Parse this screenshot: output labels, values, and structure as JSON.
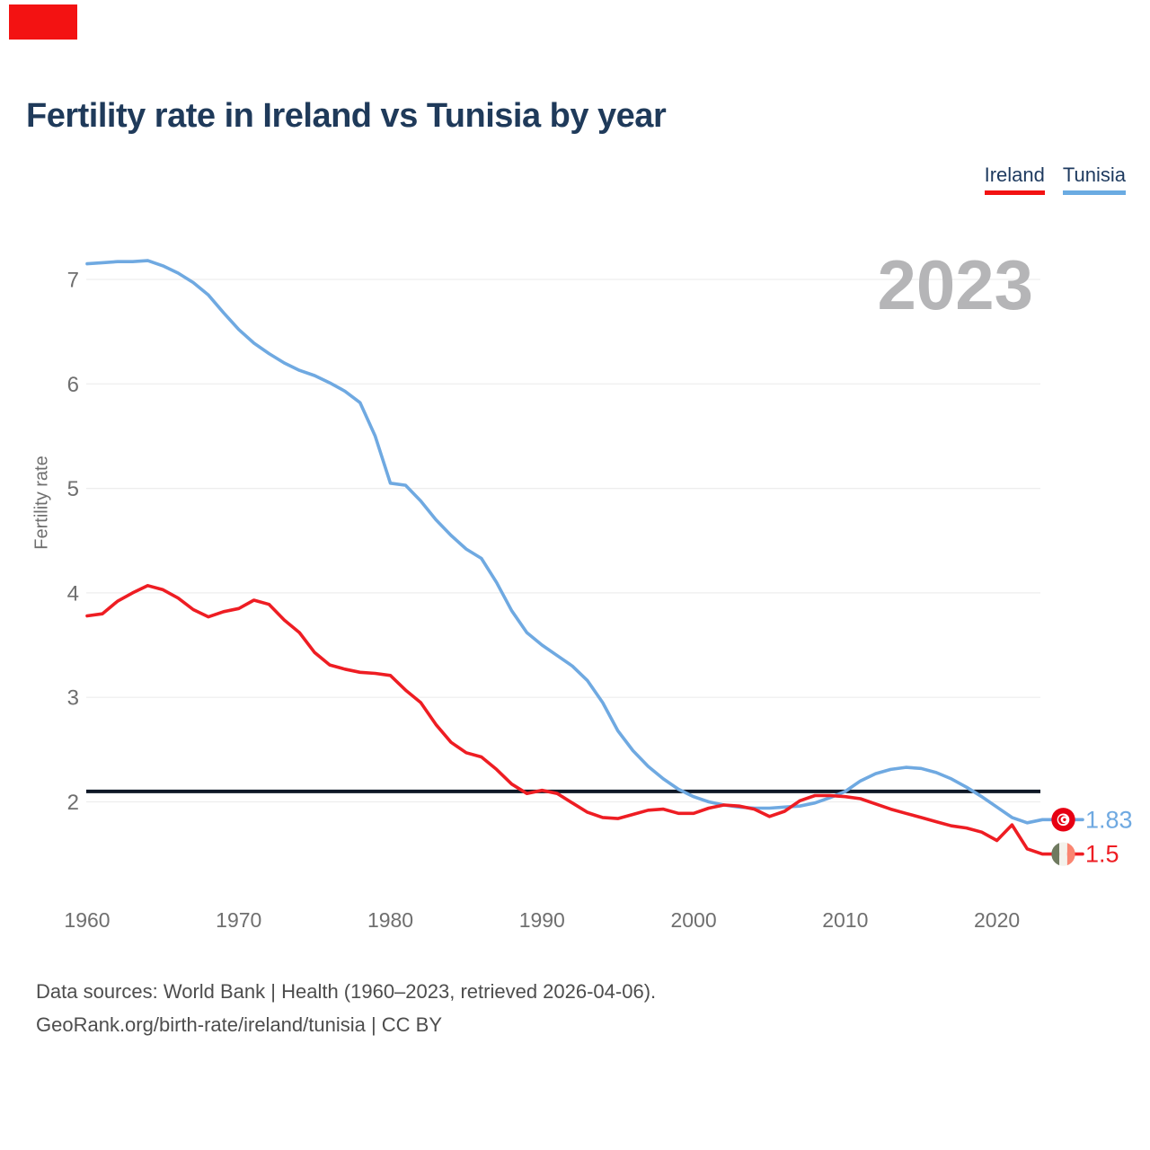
{
  "page": {
    "title": "Fertility rate in Ireland vs Tunisia by year",
    "watermark_year": "2023",
    "footer_line1": "Data sources: World Bank | Health (1960–2023, retrieved 2026-04-06).",
    "footer_line2": "GeoRank.org/birth-rate/ireland/tunisia | CC BY"
  },
  "legend": [
    {
      "label": "Ireland",
      "color": "#f31212"
    },
    {
      "label": "Tunisia",
      "color": "#6aabe2"
    }
  ],
  "chart_data": {
    "type": "line",
    "title": "Fertility rate in Ireland vs Tunisia by year",
    "xlabel": "",
    "ylabel": "Fertility rate",
    "xlim": [
      1960,
      2023
    ],
    "ylim": [
      1.2,
      7.4
    ],
    "x_ticks": [
      1960,
      1970,
      1980,
      1990,
      2000,
      2010,
      2020
    ],
    "y_ticks": [
      2,
      3,
      4,
      5,
      6,
      7
    ],
    "grid": "horizontal",
    "legend_position": "top-right",
    "replacement_line_value": 2.1,
    "watermark": "2023",
    "x": [
      1960,
      1961,
      1962,
      1963,
      1964,
      1965,
      1966,
      1967,
      1968,
      1969,
      1970,
      1971,
      1972,
      1973,
      1974,
      1975,
      1976,
      1977,
      1978,
      1979,
      1980,
      1981,
      1982,
      1983,
      1984,
      1985,
      1986,
      1987,
      1988,
      1989,
      1990,
      1991,
      1992,
      1993,
      1994,
      1995,
      1996,
      1997,
      1998,
      1999,
      2000,
      2001,
      2002,
      2003,
      2004,
      2005,
      2006,
      2007,
      2008,
      2009,
      2010,
      2011,
      2012,
      2013,
      2014,
      2015,
      2016,
      2017,
      2018,
      2019,
      2020,
      2021,
      2022,
      2023
    ],
    "series": [
      {
        "name": "Tunisia",
        "color": "#6fa9e1",
        "end_label": "1.83",
        "end_value": 1.83,
        "values": [
          7.15,
          7.16,
          7.17,
          7.17,
          7.18,
          7.13,
          7.06,
          6.97,
          6.85,
          6.68,
          6.52,
          6.39,
          6.29,
          6.2,
          6.13,
          6.08,
          6.01,
          5.93,
          5.82,
          5.5,
          5.05,
          5.03,
          4.88,
          4.7,
          4.55,
          4.42,
          4.33,
          4.1,
          3.83,
          3.62,
          3.5,
          3.4,
          3.3,
          3.16,
          2.95,
          2.68,
          2.49,
          2.34,
          2.22,
          2.12,
          2.05,
          2.0,
          1.97,
          1.95,
          1.94,
          1.94,
          1.95,
          1.96,
          1.99,
          2.04,
          2.1,
          2.2,
          2.27,
          2.31,
          2.33,
          2.32,
          2.28,
          2.22,
          2.14,
          2.05,
          1.95,
          1.85,
          1.8,
          1.83
        ]
      },
      {
        "name": "Ireland",
        "color": "#ee1d23",
        "end_label": "1.5",
        "end_value": 1.5,
        "values": [
          3.78,
          3.8,
          3.92,
          4.0,
          4.07,
          4.03,
          3.95,
          3.84,
          3.77,
          3.82,
          3.85,
          3.93,
          3.89,
          3.74,
          3.62,
          3.43,
          3.31,
          3.27,
          3.24,
          3.23,
          3.21,
          3.07,
          2.95,
          2.74,
          2.57,
          2.47,
          2.43,
          2.31,
          2.17,
          2.08,
          2.11,
          2.08,
          1.99,
          1.9,
          1.85,
          1.84,
          1.88,
          1.92,
          1.93,
          1.89,
          1.89,
          1.94,
          1.97,
          1.96,
          1.93,
          1.86,
          1.91,
          2.01,
          2.06,
          2.06,
          2.05,
          2.03,
          1.98,
          1.93,
          1.89,
          1.85,
          1.81,
          1.77,
          1.75,
          1.71,
          1.63,
          1.78,
          1.55,
          1.5
        ]
      }
    ],
    "flag_icons": [
      {
        "series": "Tunisia",
        "icon": "tunisia-flag-icon"
      },
      {
        "series": "Ireland",
        "icon": "ireland-flag-icon"
      }
    ]
  },
  "colors": {
    "title": "#1f3a5a",
    "axis_text": "#6f6f6f",
    "gridline": "#ededed",
    "replacement_line": "#0f1826",
    "watermark": "#b5b5b7",
    "footer_text": "#4d4d4d",
    "tunisia_flag_red": "#e70013",
    "ireland_flag_green": "#6f7a60",
    "ireland_flag_white": "#f4f2ec",
    "ireland_flag_orange": "#fa8571"
  }
}
